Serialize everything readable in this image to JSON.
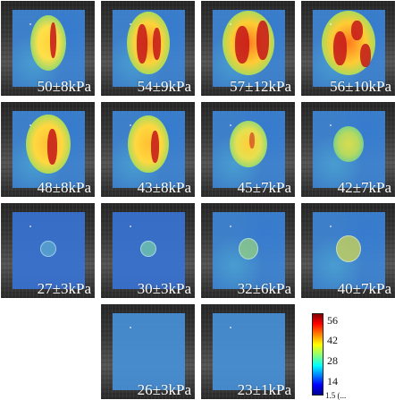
{
  "panels": [
    {
      "label": "50±8kPa"
    },
    {
      "label": "54±9kPa"
    },
    {
      "label": "57±12kPa"
    },
    {
      "label": "56±10kPa"
    },
    {
      "label": "48±8kPa"
    },
    {
      "label": "43±8kPa"
    },
    {
      "label": "45±7kPa"
    },
    {
      "label": "42±7kPa"
    },
    {
      "label": "27±3kPa"
    },
    {
      "label": "30±3kPa"
    },
    {
      "label": "32±6kPa"
    },
    {
      "label": "40±7kPa"
    },
    {
      "label": "26±3kPa"
    },
    {
      "label": "23±1kPa"
    }
  ],
  "colorbar": {
    "ticks": [
      "56",
      "42",
      "28",
      "14"
    ],
    "bottom_label_cut": "1.5 (..."
  },
  "colors": {
    "background": "#ffffff",
    "label_text": "#ffffff",
    "field_blue": "#3f86d6",
    "lesion_red": "#c4151a"
  }
}
